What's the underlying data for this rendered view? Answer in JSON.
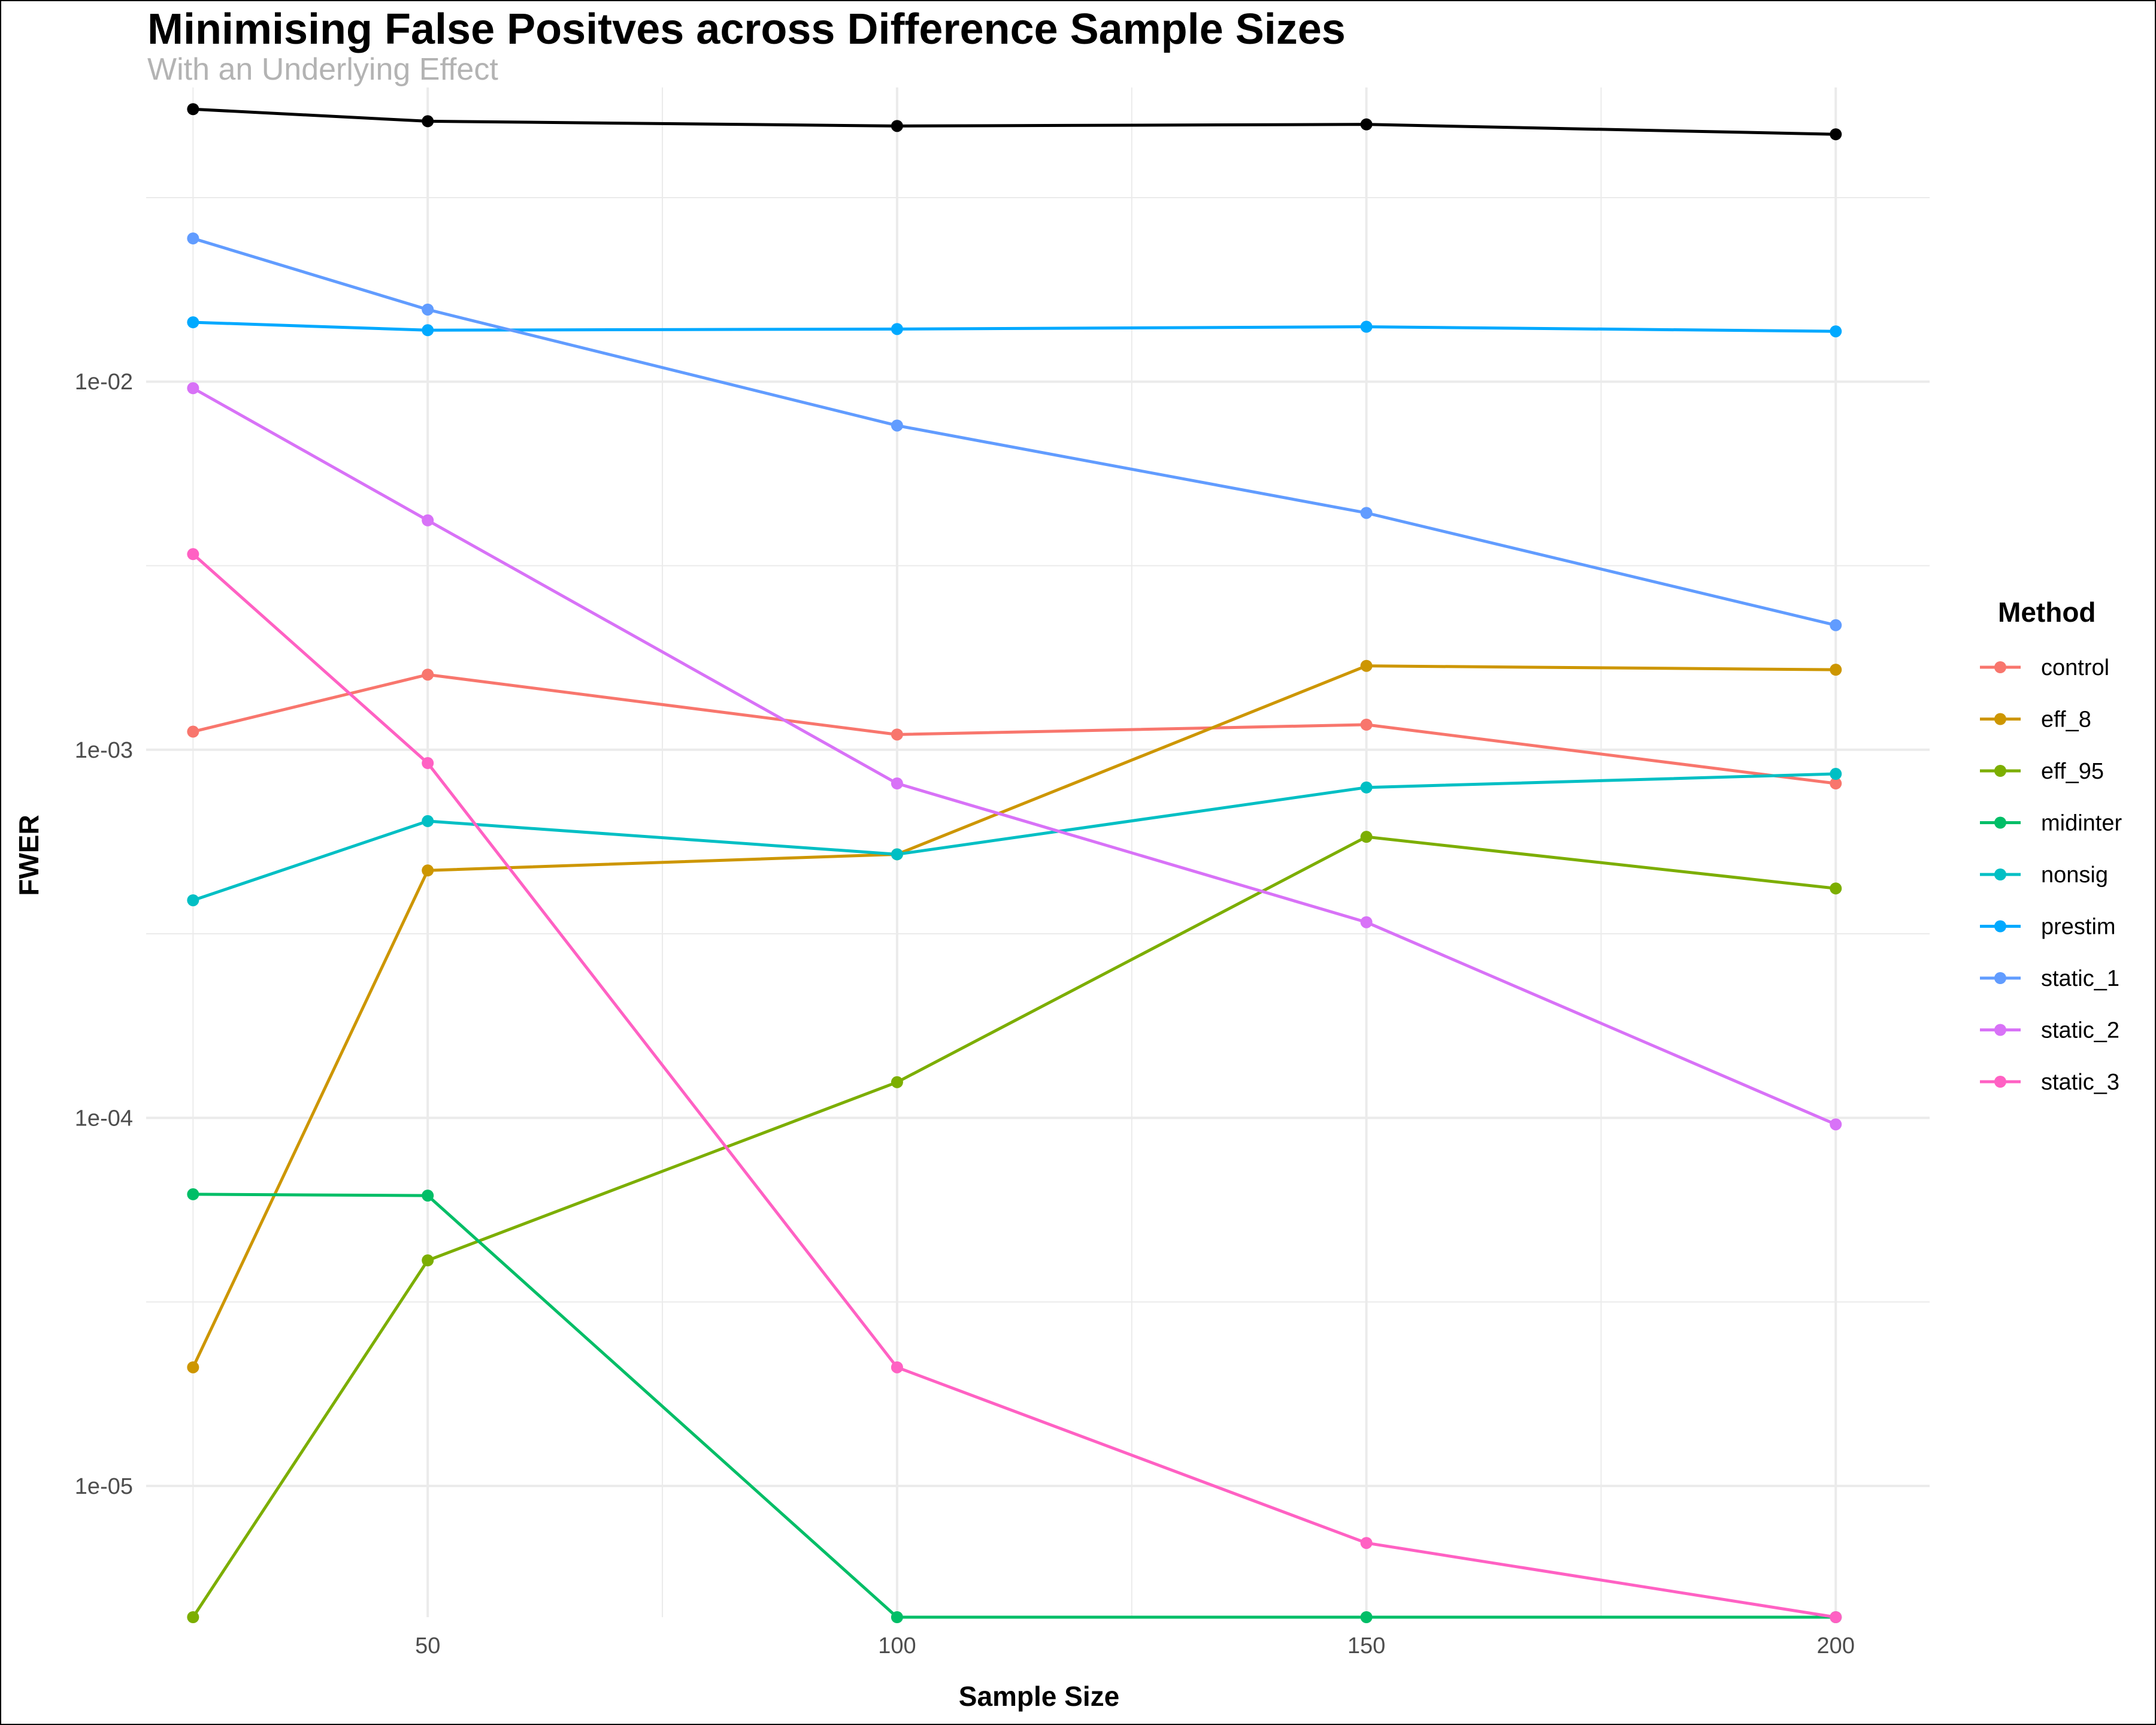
{
  "chart_data": {
    "type": "line",
    "title": "Minimising False Positves across Difference Sample Sizes",
    "subtitle": "With an Underlying Effect",
    "xlabel": "Sample Size",
    "ylabel": "FWER",
    "xlim": [
      20,
      210
    ],
    "ylim": [
      4.4e-06,
      0.063
    ],
    "y_scale": "log",
    "grid": true,
    "x_ticks": [
      50,
      100,
      150,
      200
    ],
    "x_tick_labels": [
      "50",
      "100",
      "150",
      "200"
    ],
    "y_ticks": [
      1e-05,
      0.0001,
      0.001,
      0.01
    ],
    "y_tick_labels": [
      "1e-05",
      "1e-04",
      "1e-03",
      "1e-02"
    ],
    "legend_title": "Method",
    "legend_position": "right",
    "x": [
      25,
      50,
      100,
      150,
      200
    ],
    "series": [
      {
        "id": "unlabelled",
        "name": "",
        "color": "#000000",
        "in_legend": false,
        "values": [
          0.055,
          0.051,
          0.0495,
          0.05,
          0.047
        ]
      },
      {
        "id": "control",
        "name": "control",
        "color": "#F8766D",
        "in_legend": true,
        "values": [
          0.00112,
          0.0016,
          0.0011,
          0.00117,
          0.00081
        ]
      },
      {
        "id": "eff_8",
        "name": "eff_8",
        "color": "#CD9600",
        "in_legend": true,
        "values": [
          2.1e-05,
          0.00047,
          0.00052,
          0.00169,
          0.00165
        ]
      },
      {
        "id": "eff_95",
        "name": "eff_95",
        "color": "#7CAE00",
        "in_legend": true,
        "values": [
          4.4e-06,
          4.1e-05,
          0.000125,
          0.00058,
          0.00042
        ]
      },
      {
        "id": "midinter",
        "name": "midinter",
        "color": "#00BE67",
        "in_legend": true,
        "values": [
          6.2e-05,
          6.15e-05,
          4.4e-06,
          4.4e-06,
          4.4e-06
        ]
      },
      {
        "id": "nonsig",
        "name": "nonsig",
        "color": "#00BFC4",
        "in_legend": true,
        "values": [
          0.00039,
          0.00064,
          0.00052,
          0.00079,
          0.00086
        ]
      },
      {
        "id": "prestim",
        "name": "prestim",
        "color": "#00A9FF",
        "in_legend": true,
        "values": [
          0.0145,
          0.0138,
          0.0139,
          0.0141,
          0.0137
        ]
      },
      {
        "id": "static_1",
        "name": "static_1",
        "color": "#619CFF",
        "in_legend": true,
        "values": [
          0.0245,
          0.0157,
          0.0076,
          0.0044,
          0.00218
        ]
      },
      {
        "id": "static_2",
        "name": "static_2",
        "color": "#D872F7",
        "in_legend": true,
        "values": [
          0.0096,
          0.0042,
          0.00081,
          0.00034,
          9.6e-05
        ]
      },
      {
        "id": "static_3",
        "name": "static_3",
        "color": "#FF61C3",
        "in_legend": true,
        "values": [
          0.0034,
          0.00092,
          2.1e-05,
          7e-06,
          4.4e-06
        ]
      }
    ]
  }
}
